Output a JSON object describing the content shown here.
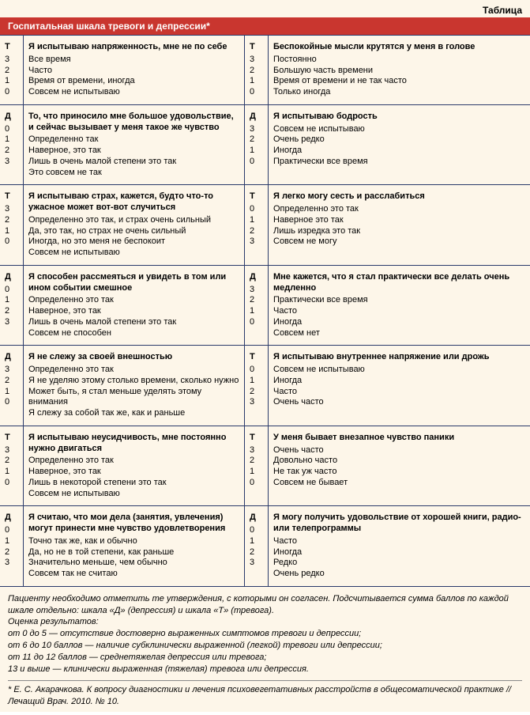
{
  "labels": {
    "table_label": "Таблица",
    "title": "Госпитальная шкала тревоги и депрессии*"
  },
  "colors": {
    "header_bg": "#c9362f",
    "header_text": "#ffffff",
    "body_bg": "#fdf6e9",
    "border": "#2a3a6a"
  },
  "rows": [
    {
      "left": {
        "code": "Т",
        "prompt": "Я испытываю напряженность, мне не по себе",
        "options": [
          {
            "n": "3",
            "t": "Все время"
          },
          {
            "n": "2",
            "t": "Часто"
          },
          {
            "n": "1",
            "t": "Время от времени, иногда"
          },
          {
            "n": "0",
            "t": "Совсем не испытываю"
          }
        ]
      },
      "right": {
        "code": "Т",
        "prompt": "Беспокойные мысли крутятся у меня в голове",
        "options": [
          {
            "n": "3",
            "t": "Постоянно"
          },
          {
            "n": "2",
            "t": "Большую часть времени"
          },
          {
            "n": "1",
            "t": "Время от времени и не так часто"
          },
          {
            "n": "0",
            "t": "Только иногда"
          }
        ]
      }
    },
    {
      "left": {
        "code": "Д",
        "prompt": "То, что приносило мне большое удовольствие, и сейчас вызывает у меня такое же чувство",
        "options": [
          {
            "n": "0",
            "t": "Определенно так"
          },
          {
            "n": "1",
            "t": "Наверное, это так"
          },
          {
            "n": "2",
            "t": "Лишь в очень малой степени это так"
          },
          {
            "n": "3",
            "t": "Это совсем не так"
          }
        ]
      },
      "right": {
        "code": "Д",
        "prompt": "Я испытываю бодрость",
        "options": [
          {
            "n": "3",
            "t": "Совсем не испытываю"
          },
          {
            "n": "2",
            "t": "Очень редко"
          },
          {
            "n": "1",
            "t": "Иногда"
          },
          {
            "n": "0",
            "t": "Практически все время"
          }
        ]
      }
    },
    {
      "left": {
        "code": "Т",
        "prompt": "Я испытываю страх, кажется, будто что-то ужасное может вот-вот случиться",
        "options": [
          {
            "n": "3",
            "t": "Определенно это так, и страх очень сильный"
          },
          {
            "n": "2",
            "t": "Да, это так, но страх не очень сильный"
          },
          {
            "n": "1",
            "t": "Иногда, но это меня не беспокоит"
          },
          {
            "n": "0",
            "t": "Совсем не испытываю"
          }
        ]
      },
      "right": {
        "code": "Т",
        "prompt": "Я легко могу сесть и расслабиться",
        "options": [
          {
            "n": "0",
            "t": "Определенно это так"
          },
          {
            "n": "1",
            "t": "Наверное это так"
          },
          {
            "n": "2",
            "t": "Лишь изредка это так"
          },
          {
            "n": "3",
            "t": "Совсем не могу"
          }
        ]
      }
    },
    {
      "left": {
        "code": "Д",
        "prompt": "Я способен рассмеяться и увидеть в том или ином событии смешное",
        "options": [
          {
            "n": "0",
            "t": "Определенно это так"
          },
          {
            "n": "1",
            "t": "Наверное, это так"
          },
          {
            "n": "2",
            "t": "Лишь в очень малой степени это так"
          },
          {
            "n": "3",
            "t": "Совсем не способен"
          }
        ]
      },
      "right": {
        "code": "Д",
        "prompt": "Мне кажется, что я стал практически все делать очень медленно",
        "options": [
          {
            "n": "3",
            "t": "Практически все время"
          },
          {
            "n": "2",
            "t": "Часто"
          },
          {
            "n": "1",
            "t": "Иногда"
          },
          {
            "n": "0",
            "t": "Совсем нет"
          }
        ]
      }
    },
    {
      "left": {
        "code": "Д",
        "prompt": "Я не слежу за своей внешностью",
        "options": [
          {
            "n": "3",
            "t": "Определенно это так"
          },
          {
            "n": "2",
            "t": "Я не уделяю этому столько времени, сколько нужно"
          },
          {
            "n": "1",
            "t": "Может быть, я стал меньше уделять этому внимания"
          },
          {
            "n": "0",
            "t": "Я слежу за собой так же, как и раньше"
          }
        ]
      },
      "right": {
        "code": "Т",
        "prompt": "Я испытываю внутреннее напряжение или дрожь",
        "options": [
          {
            "n": "0",
            "t": "Совсем не испытываю"
          },
          {
            "n": "1",
            "t": "Иногда"
          },
          {
            "n": "2",
            "t": "Часто"
          },
          {
            "n": "3",
            "t": "Очень часто"
          }
        ]
      }
    },
    {
      "left": {
        "code": "Т",
        "prompt": "Я испытываю неусидчивость, мне постоянно нужно двигаться",
        "options": [
          {
            "n": "3",
            "t": "Определенно это так"
          },
          {
            "n": "2",
            "t": "Наверное, это так"
          },
          {
            "n": "1",
            "t": "Лишь в некоторой степени это так"
          },
          {
            "n": "0",
            "t": "Совсем не испытываю"
          }
        ]
      },
      "right": {
        "code": "Т",
        "prompt": "У меня бывает внезапное чувство паники",
        "options": [
          {
            "n": "3",
            "t": "Очень часто"
          },
          {
            "n": "2",
            "t": "Довольно часто"
          },
          {
            "n": "1",
            "t": "Не так уж часто"
          },
          {
            "n": "0",
            "t": "Совсем не бывает"
          }
        ]
      }
    },
    {
      "left": {
        "code": "Д",
        "prompt": "Я считаю, что мои дела (занятия, увлечения) могут принести мне чувство удовлетворения",
        "options": [
          {
            "n": "0",
            "t": "Точно так же, как и обычно"
          },
          {
            "n": "1",
            "t": "Да, но не в той степени, как раньше"
          },
          {
            "n": "2",
            "t": "Значительно меньше, чем обычно"
          },
          {
            "n": "3",
            "t": "Совсем так не считаю"
          }
        ]
      },
      "right": {
        "code": "Д",
        "prompt": "Я могу получить удовольствие от хорошей книги, радио- или телепрограммы",
        "options": [
          {
            "n": "0",
            "t": "Часто"
          },
          {
            "n": "1",
            "t": "Иногда"
          },
          {
            "n": "2",
            "t": "Редко"
          },
          {
            "n": "3",
            "t": "Очень редко"
          }
        ]
      }
    }
  ],
  "footer_lines": [
    "Пациенту необходимо отметить те утверждения, с которыми он согласен. Подсчитывается сумма баллов по каждой шкале отдельно: шкала «Д» (депрессия) и шкала «Т» (тревога).",
    "Оценка результатов:",
    "от 0 до 5 — отсутствие достоверно выраженных симптомов тревоги и депрессии;",
    "от 6 до 10 баллов — наличие субклинически выраженной (легкой) тревоги или депрессии;",
    "от 11 до 12 баллов — среднетяжелая депрессия или тревога;",
    "13 и выше — клинически выраженная (тяжелая) тревога или депрессия."
  ],
  "reference": "* Е. С. Акарачкова. К вопросу диагностики и лечения психовегетативных расстройств в общесоматической практике // Лечащий Врач. 2010. № 10."
}
